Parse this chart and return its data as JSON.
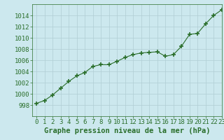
{
  "x": [
    0,
    1,
    2,
    3,
    4,
    5,
    6,
    7,
    8,
    9,
    10,
    11,
    12,
    13,
    14,
    15,
    16,
    17,
    18,
    19,
    20,
    21,
    22,
    23
  ],
  "y": [
    998.3,
    998.8,
    999.8,
    1001.0,
    1002.2,
    1003.2,
    1003.8,
    1004.9,
    1005.2,
    1005.2,
    1005.8,
    1006.5,
    1007.0,
    1007.3,
    1007.4,
    1007.5,
    1006.7,
    1007.0,
    1008.5,
    1010.6,
    1010.8,
    1012.5,
    1014.0,
    1015.0
  ],
  "line_color": "#2a6e2a",
  "marker_color": "#2a6e2a",
  "bg_color": "#cce8ee",
  "grid_color": "#b0cdd4",
  "xlabel": "Graphe pression niveau de la mer (hPa)",
  "ylim": [
    996,
    1016
  ],
  "xlim": [
    -0.5,
    23
  ],
  "yticks": [
    998,
    1000,
    1002,
    1004,
    1006,
    1008,
    1010,
    1012,
    1014
  ],
  "xticks": [
    0,
    1,
    2,
    3,
    4,
    5,
    6,
    7,
    8,
    9,
    10,
    11,
    12,
    13,
    14,
    15,
    16,
    17,
    18,
    19,
    20,
    21,
    22,
    23
  ],
  "text_color": "#2a6e2a",
  "xlabel_fontsize": 7.5,
  "tick_fontsize": 6.5
}
